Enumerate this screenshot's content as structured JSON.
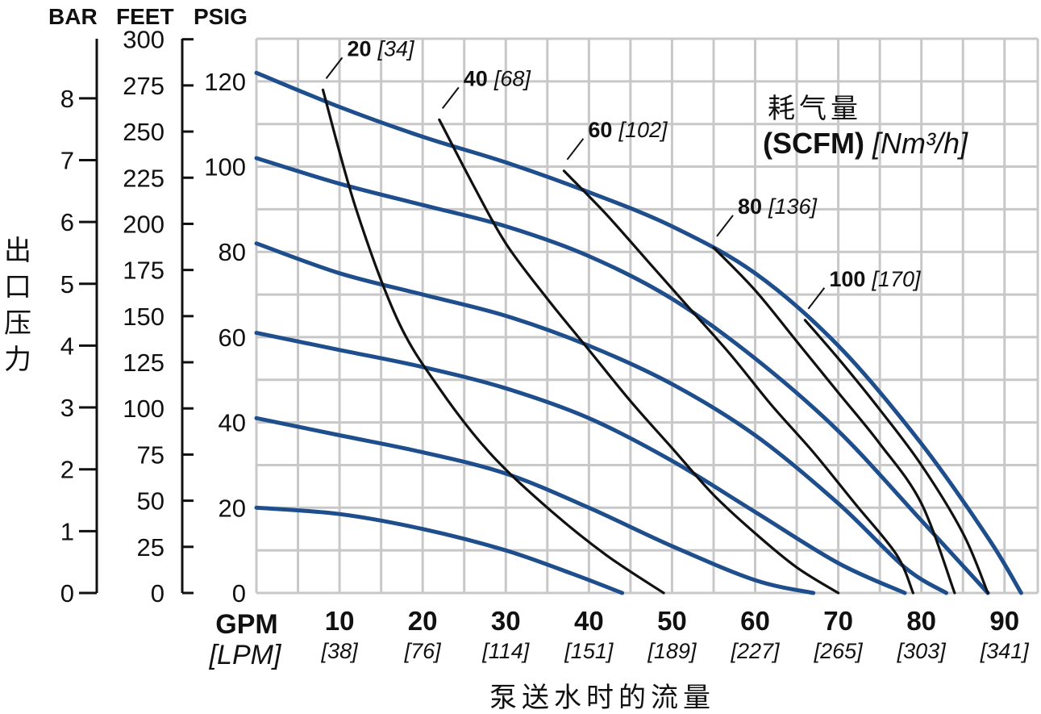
{
  "chart_data": {
    "type": "line",
    "header": {
      "bar": "BAR",
      "feet": "FEET",
      "psig": "PSIG"
    },
    "ylabel": "出口压力",
    "xlabel": "泵送水时的流量",
    "x_units": {
      "primary": "GPM",
      "secondary": "[LPM]"
    },
    "xlim": [
      0,
      94
    ],
    "ylim_psig": [
      0,
      130
    ],
    "x_ticks": [
      {
        "gpm": "10",
        "lpm": "[38]"
      },
      {
        "gpm": "20",
        "lpm": "[76]"
      },
      {
        "gpm": "30",
        "lpm": "[114]"
      },
      {
        "gpm": "40",
        "lpm": "[151]"
      },
      {
        "gpm": "50",
        "lpm": "[189]"
      },
      {
        "gpm": "60",
        "lpm": "[227]"
      },
      {
        "gpm": "70",
        "lpm": "[265]"
      },
      {
        "gpm": "80",
        "lpm": "[303]"
      },
      {
        "gpm": "90",
        "lpm": "[341]"
      }
    ],
    "y_ticks_psig": [
      "0",
      "20",
      "40",
      "60",
      "80",
      "100",
      "120"
    ],
    "y_ticks_feet": [
      "0",
      "25",
      "50",
      "75",
      "100",
      "125",
      "150",
      "175",
      "200",
      "225",
      "250",
      "275",
      "300"
    ],
    "y_ticks_bar": [
      "0",
      "1",
      "2",
      "3",
      "4",
      "5",
      "6",
      "7",
      "8"
    ],
    "legend": {
      "title": "耗气量",
      "unit_bold": "(SCFM)",
      "unit_italic": "[Nm³/h]"
    },
    "colors": {
      "pressure_curves": "#1f4e8c",
      "air_curves": "#111111",
      "grid": "#c8c8c8"
    },
    "pressure_curves": [
      {
        "points": [
          [
            0,
            20
          ],
          [
            10,
            18.5
          ],
          [
            20,
            15
          ],
          [
            30,
            10
          ],
          [
            38,
            4.5
          ],
          [
            44,
            0
          ]
        ]
      },
      {
        "points": [
          [
            0,
            41
          ],
          [
            10,
            37
          ],
          [
            20,
            33
          ],
          [
            30,
            28
          ],
          [
            40,
            20
          ],
          [
            50,
            11
          ],
          [
            60,
            3
          ],
          [
            67,
            0
          ]
        ]
      },
      {
        "points": [
          [
            0,
            61
          ],
          [
            10,
            57
          ],
          [
            20,
            53
          ],
          [
            30,
            48
          ],
          [
            40,
            41
          ],
          [
            50,
            31
          ],
          [
            60,
            19
          ],
          [
            70,
            7
          ],
          [
            78,
            0
          ]
        ]
      },
      {
        "points": [
          [
            0,
            82
          ],
          [
            10,
            75
          ],
          [
            20,
            70
          ],
          [
            30,
            65
          ],
          [
            40,
            58
          ],
          [
            50,
            49
          ],
          [
            60,
            37
          ],
          [
            70,
            21
          ],
          [
            78,
            6
          ],
          [
            83,
            0
          ]
        ]
      },
      {
        "points": [
          [
            0,
            102
          ],
          [
            10,
            96
          ],
          [
            20,
            91
          ],
          [
            30,
            86
          ],
          [
            40,
            79
          ],
          [
            50,
            69
          ],
          [
            60,
            55
          ],
          [
            70,
            38
          ],
          [
            80,
            17
          ],
          [
            88,
            0
          ]
        ]
      },
      {
        "points": [
          [
            0,
            122
          ],
          [
            10,
            114
          ],
          [
            20,
            107
          ],
          [
            30,
            101
          ],
          [
            40,
            94
          ],
          [
            50,
            86
          ],
          [
            60,
            75
          ],
          [
            70,
            58
          ],
          [
            80,
            35
          ],
          [
            88,
            13
          ],
          [
            92,
            0
          ]
        ]
      }
    ],
    "air_curves": [
      {
        "scfm": "20",
        "nm3h": "[34]",
        "points": [
          [
            8,
            118
          ],
          [
            12,
            90
          ],
          [
            17,
            64
          ],
          [
            22,
            48
          ],
          [
            28,
            33
          ],
          [
            35,
            20
          ],
          [
            42,
            9
          ],
          [
            49,
            0
          ]
        ]
      },
      {
        "scfm": "40",
        "nm3h": "[68]",
        "points": [
          [
            22,
            111
          ],
          [
            26,
            96
          ],
          [
            30,
            82
          ],
          [
            35,
            69
          ],
          [
            40,
            57
          ],
          [
            45,
            45
          ],
          [
            50,
            34
          ],
          [
            55,
            23
          ],
          [
            60,
            14
          ],
          [
            65,
            6
          ],
          [
            70,
            0
          ]
        ]
      },
      {
        "scfm": "60",
        "nm3h": "[102]",
        "points": [
          [
            37,
            99
          ],
          [
            42,
            89
          ],
          [
            47,
            78
          ],
          [
            52,
            67
          ],
          [
            57,
            56
          ],
          [
            62,
            44
          ],
          [
            67,
            33
          ],
          [
            72,
            21
          ],
          [
            77,
            9
          ],
          [
            79,
            0
          ]
        ]
      },
      {
        "scfm": "80",
        "nm3h": "[136]",
        "points": [
          [
            55,
            81
          ],
          [
            60,
            71
          ],
          [
            65,
            59
          ],
          [
            70,
            47
          ],
          [
            75,
            35
          ],
          [
            80,
            21
          ],
          [
            84,
            0
          ]
        ]
      },
      {
        "scfm": "100",
        "nm3h": "[170]",
        "points": [
          [
            66,
            64
          ],
          [
            70,
            55
          ],
          [
            75,
            43
          ],
          [
            80,
            30
          ],
          [
            85,
            14
          ],
          [
            88,
            0
          ]
        ]
      }
    ]
  }
}
